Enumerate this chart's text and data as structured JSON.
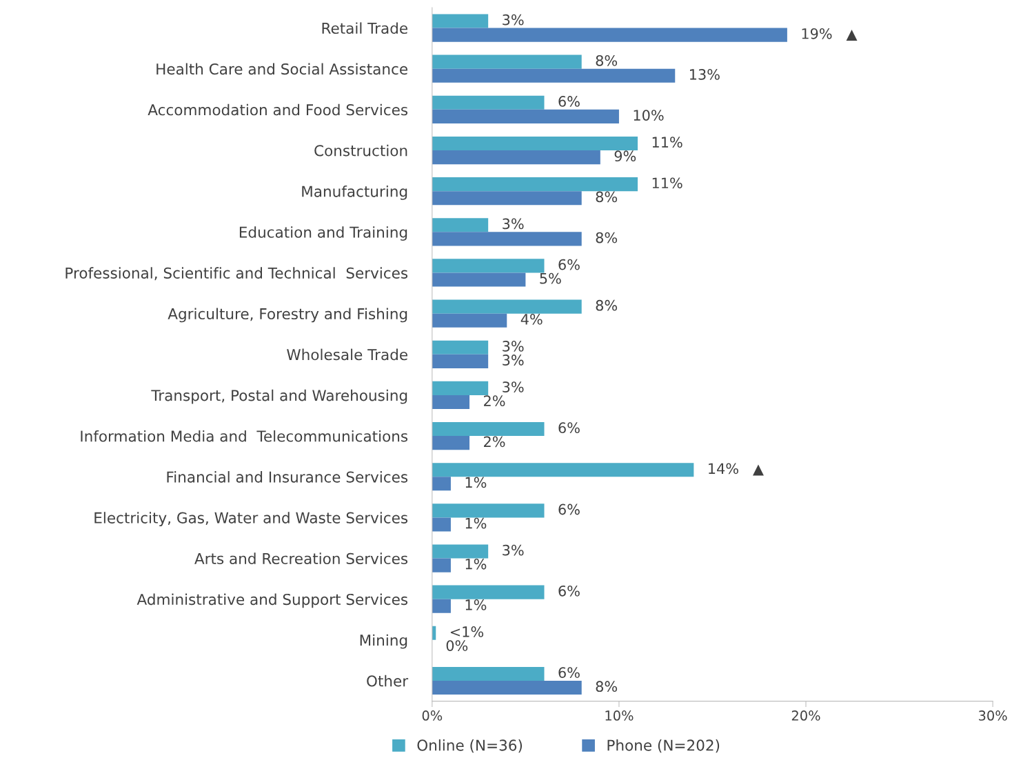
{
  "chart_data": {
    "type": "bar",
    "orientation": "horizontal",
    "categories": [
      "Retail Trade",
      "Health Care and Social Assistance",
      "Accommodation and Food Services",
      "Construction",
      "Manufacturing",
      "Education and Training",
      "Professional, Scientific and Technical  Services",
      "Agriculture, Forestry and Fishing",
      "Wholesale Trade",
      "Transport, Postal and Warehousing",
      "Information Media and  Telecommunications",
      "Financial and Insurance Services",
      "Electricity, Gas, Water and Waste Services",
      "Arts and Recreation Services",
      "Administrative and Support Services",
      "Mining",
      "Other"
    ],
    "series": [
      {
        "name": "Online (N=36)",
        "color": "#4bacc6",
        "values": [
          3,
          8,
          6,
          11,
          11,
          3,
          6,
          8,
          3,
          3,
          6,
          14,
          6,
          3,
          6,
          0.2,
          6
        ],
        "value_labels": [
          "3%",
          "8%",
          "6%",
          "11%",
          "11%",
          "3%",
          "6%",
          "8%",
          "3%",
          "3%",
          "6%",
          "14%   ▲",
          "6%",
          "3%",
          "6%",
          "<1%",
          "6%"
        ]
      },
      {
        "name": "Phone (N=202)",
        "color": "#4f81bd",
        "values": [
          19,
          13,
          10,
          9,
          8,
          8,
          5,
          4,
          3,
          2,
          2,
          1,
          1,
          1,
          1,
          0,
          8
        ],
        "value_labels": [
          "19%   ▲",
          "13%",
          "10%",
          "9%",
          "8%",
          "8%",
          "5%",
          "4%",
          "3%",
          "2%",
          "2%",
          "1%",
          "1%",
          "1%",
          "1%",
          "0%",
          "8%"
        ]
      }
    ],
    "xlim": [
      0,
      30
    ],
    "xticks": [
      {
        "value": 0,
        "label": "0%"
      },
      {
        "value": 10,
        "label": "10%"
      },
      {
        "value": 20,
        "label": "20%"
      },
      {
        "value": 30,
        "label": "30%"
      }
    ],
    "grid": false,
    "legend": "bottom"
  }
}
